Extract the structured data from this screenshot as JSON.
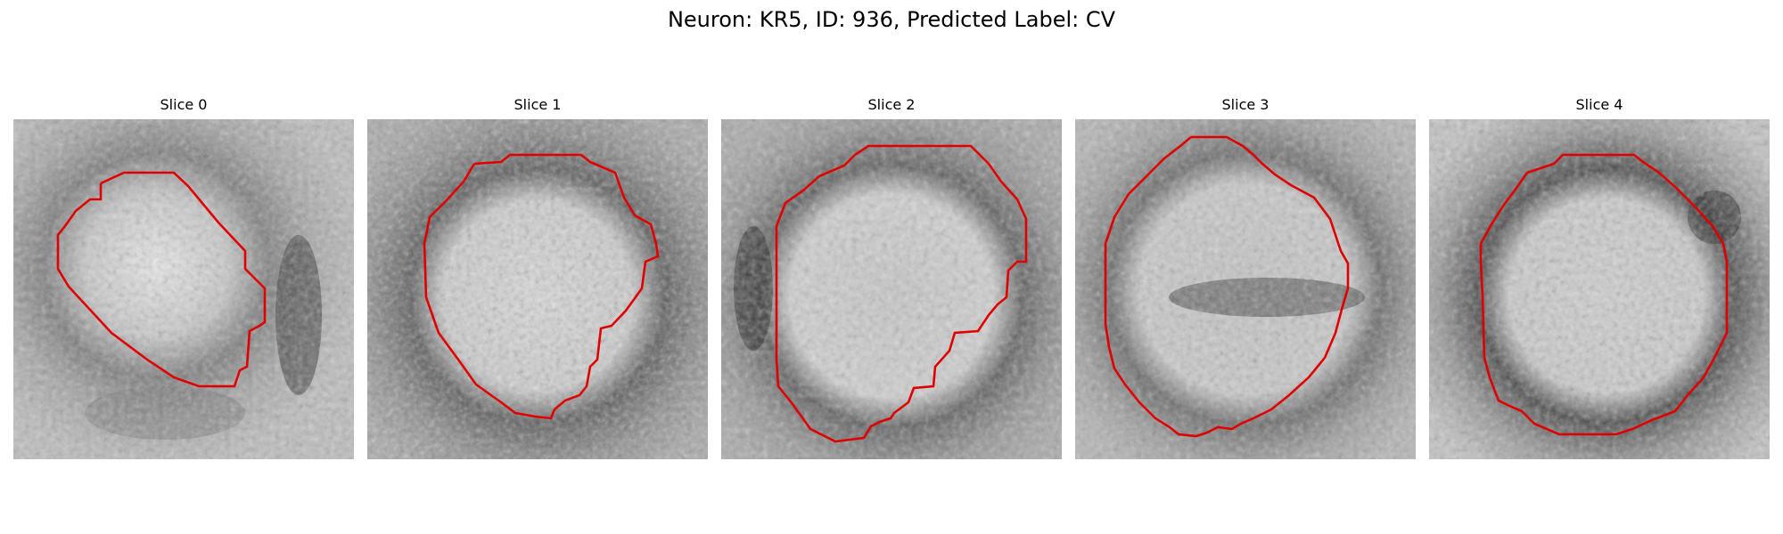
{
  "figure": {
    "title": "Neuron: KR5, ID: 936, Predicted Label: CV",
    "contour_color": "#e00000",
    "panels": [
      {
        "title": "Slice 0"
      },
      {
        "title": "Slice 1"
      },
      {
        "title": "Slice 2"
      },
      {
        "title": "Slice 3"
      },
      {
        "title": "Slice 4"
      }
    ]
  }
}
